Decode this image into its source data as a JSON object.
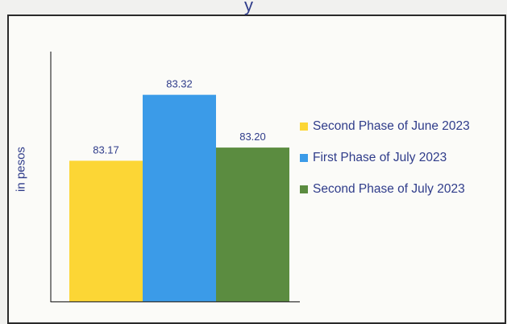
{
  "chart_data": {
    "type": "bar",
    "title_fragment": "y",
    "xlabel": "",
    "ylabel": "in pesos",
    "ylim": [
      82.85,
      83.4
    ],
    "grid": false,
    "legend_position": "right",
    "series": [
      {
        "name": "Second Phase of June 2023",
        "value": 83.17,
        "label": "83.17",
        "color": "#fcd635"
      },
      {
        "name": "First Phase of July 2023",
        "value": 83.32,
        "label": "83.32",
        "color": "#3b9be8"
      },
      {
        "name": "Second Phase of July 2023",
        "value": 83.2,
        "label": "83.20",
        "color": "#5b8c40"
      }
    ]
  }
}
